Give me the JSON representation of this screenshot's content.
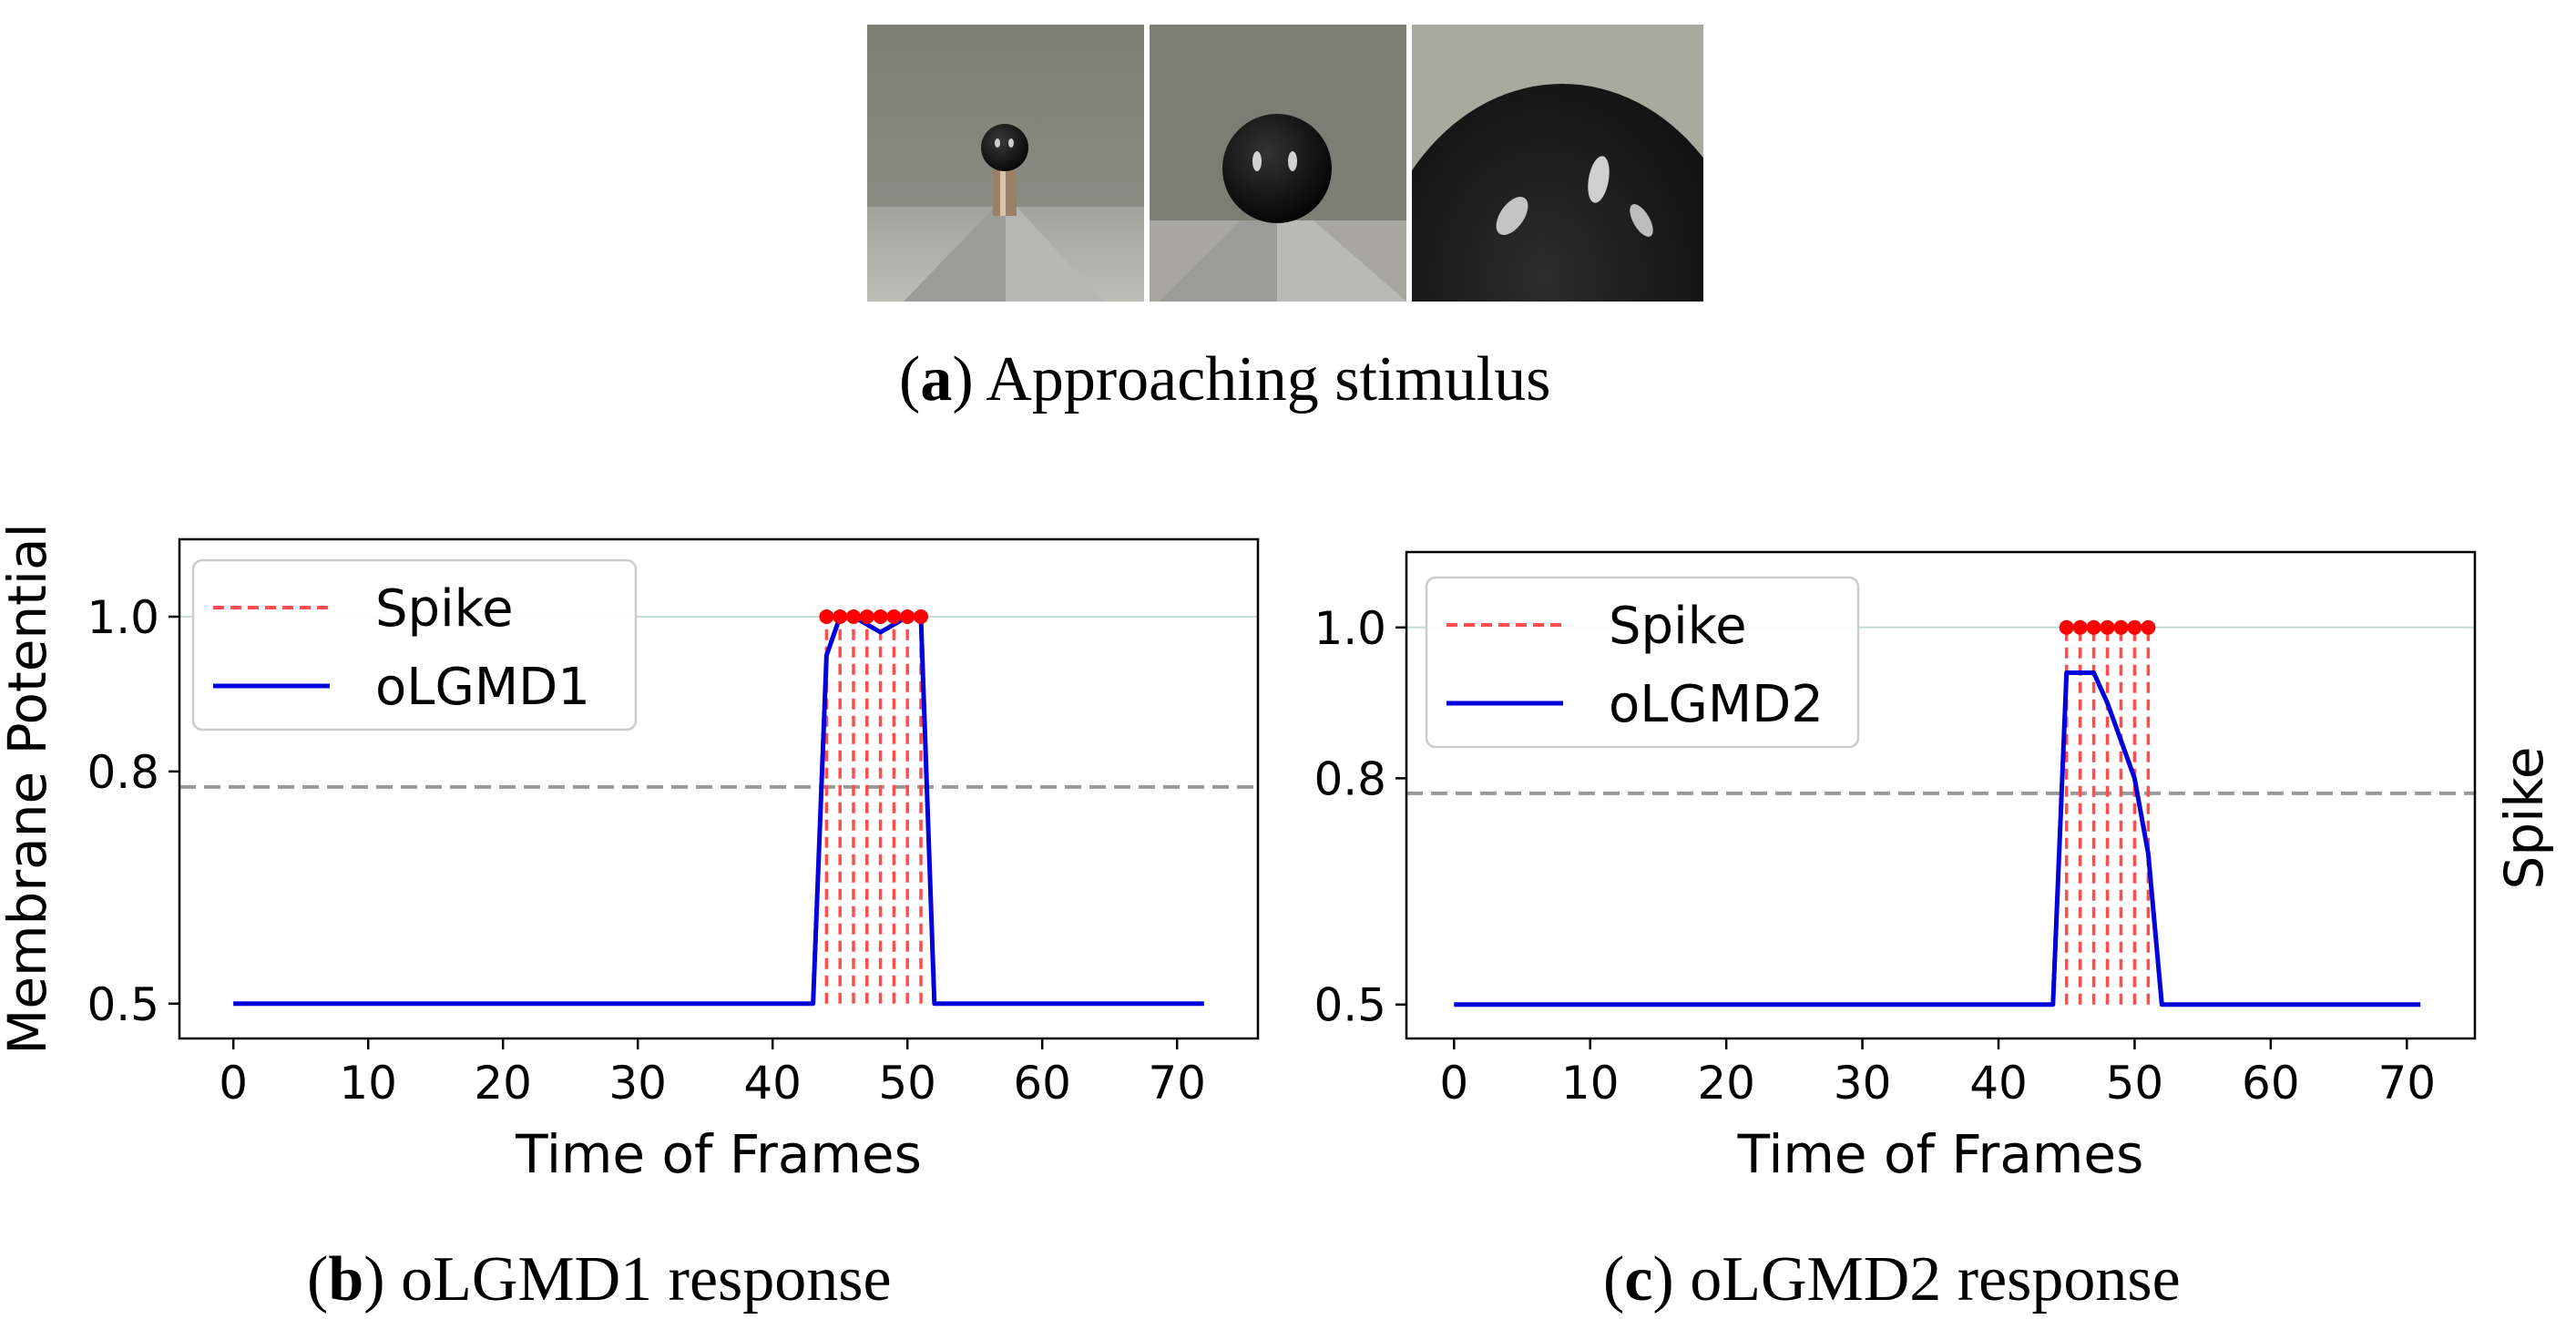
{
  "photos": {
    "caption_letter": "a",
    "caption_text": "Approaching stimulus",
    "frames": [
      "approach-far",
      "approach-mid",
      "approach-near"
    ]
  },
  "colors": {
    "spike": "#ff4d4d",
    "spike_marker": "#ff0000",
    "potential": "#0000dd",
    "threshold": "#999999",
    "ref_line": "#c5dcd8"
  },
  "side_label": "Spike",
  "chart_data": [
    {
      "type": "line",
      "caption_letter": "b",
      "caption_text": "oLGMD1 response",
      "xlabel": "Time of Frames",
      "ylabel": "Membrane Potential",
      "xlim": [
        -4,
        76
      ],
      "ylim": [
        0.455,
        1.1
      ],
      "xticks": [
        0,
        10,
        20,
        30,
        40,
        50,
        60,
        70
      ],
      "yticks": [
        0.5,
        0.8,
        1.0
      ],
      "ytick_labels": [
        "0.5",
        "0.8",
        "1.0"
      ],
      "threshold": 0.78,
      "reference_line": 1.0,
      "legend": {
        "placement": "upper-left",
        "spike_label": "Spike",
        "series_label": "oLGMD1"
      },
      "series": [
        {
          "name": "oLGMD1",
          "x": [
            0,
            43,
            44,
            45,
            46,
            47,
            48,
            49,
            50,
            51,
            52,
            72
          ],
          "y": [
            0.5,
            0.5,
            0.95,
            1.0,
            1.0,
            0.99,
            0.98,
            0.99,
            1.0,
            1.0,
            0.5,
            0.5
          ]
        }
      ],
      "spikes": [
        44,
        45,
        46,
        47,
        48,
        49,
        50,
        51
      ],
      "spike_value": 1.0
    },
    {
      "type": "line",
      "caption_letter": "c",
      "caption_text": "oLGMD2 response",
      "xlabel": "Time of Frames",
      "ylabel": "",
      "xlim": [
        -3.5,
        75
      ],
      "ylim": [
        0.455,
        1.1
      ],
      "xticks": [
        0,
        10,
        20,
        30,
        40,
        50,
        60,
        70
      ],
      "yticks": [
        0.5,
        0.8,
        1.0
      ],
      "ytick_labels": [
        "0.5",
        "0.8",
        "1.0"
      ],
      "threshold": 0.78,
      "reference_line": 1.0,
      "legend": {
        "placement": "upper-left",
        "spike_label": "Spike",
        "series_label": "oLGMD2"
      },
      "series": [
        {
          "name": "oLGMD2",
          "x": [
            0,
            44,
            45,
            46,
            47,
            48,
            49,
            50,
            51,
            52,
            71
          ],
          "y": [
            0.5,
            0.5,
            0.94,
            0.94,
            0.94,
            0.9,
            0.85,
            0.8,
            0.7,
            0.5,
            0.5
          ]
        }
      ],
      "spikes": [
        45,
        46,
        47,
        48,
        49,
        50,
        51
      ],
      "spike_value": 1.0
    }
  ]
}
